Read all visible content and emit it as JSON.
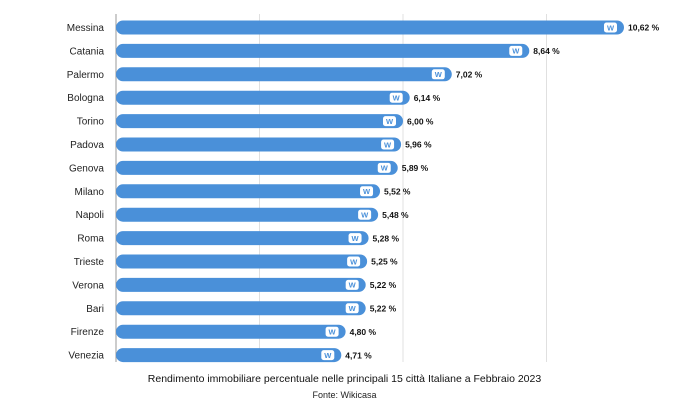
{
  "chart_data": {
    "type": "bar",
    "orientation": "horizontal",
    "categories": [
      "Messina",
      "Catania",
      "Palermo",
      "Bologna",
      "Torino",
      "Padova",
      "Genova",
      "Milano",
      "Napoli",
      "Roma",
      "Trieste",
      "Verona",
      "Bari",
      "Firenze",
      "Venezia"
    ],
    "values": [
      10.62,
      8.64,
      7.02,
      6.14,
      6.0,
      5.96,
      5.89,
      5.52,
      5.48,
      5.28,
      5.25,
      5.22,
      5.22,
      4.8,
      4.71
    ],
    "value_labels": [
      "10,62 %",
      "8,64 %",
      "7,02 %",
      "6,14 %",
      "6,00 %",
      "5,96 %",
      "5,89 %",
      "5,52 %",
      "5,48 %",
      "5,28 %",
      "5,25 %",
      "5,22 %",
      "5,22 %",
      "4,80 %",
      "4,71 %"
    ],
    "title": "Rendimento immobiliare percentuale nelle principali 15 città Italiane a Febbraio 2023",
    "source": "Fonte: Wikicasa",
    "xlim": [
      0,
      12
    ],
    "gridlines": [
      0,
      3,
      6,
      9,
      12
    ],
    "grid": true,
    "bar_color": "#4A90D9",
    "badge_text": "W",
    "badge_color": "#ffffff"
  }
}
